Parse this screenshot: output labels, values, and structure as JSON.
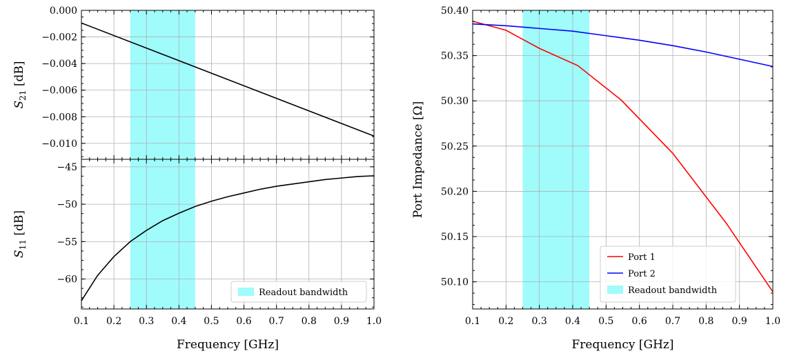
{
  "chart_data": [
    {
      "type": "line",
      "panel": "top-left",
      "ylabel_main": "S",
      "ylabel_sub": "21",
      "ylabel_unit": " [dB]",
      "xlim": [
        0.1,
        1.0
      ],
      "ylim": [
        -0.0112,
        0.0
      ],
      "y_ticks": [
        0.0,
        -0.002,
        -0.004,
        -0.006,
        -0.008,
        -0.01
      ],
      "y_tick_labels": [
        "0.000",
        "−0.002",
        "−0.004",
        "−0.006",
        "−0.008",
        "−0.010"
      ],
      "x_ticks": [
        0.1,
        0.2,
        0.3,
        0.4,
        0.5,
        0.6,
        0.7,
        0.8,
        0.9,
        1.0
      ],
      "shaded_band": [
        0.25,
        0.45
      ],
      "band_color": "#a0fbfb",
      "grid": true,
      "series": [
        {
          "color": "#000000",
          "x": [
            0.1,
            1.0
          ],
          "y": [
            -0.00095,
            -0.00945
          ]
        }
      ]
    },
    {
      "type": "line",
      "panel": "bottom-left",
      "ylabel_main": "S",
      "ylabel_sub": "11",
      "ylabel_unit": " [dB]",
      "xlabel": "Frequency [GHz]",
      "xlim": [
        0.1,
        1.0
      ],
      "ylim": [
        -64.0,
        -44.0
      ],
      "y_ticks": [
        -45,
        -50,
        -55,
        -60
      ],
      "y_tick_labels": [
        "−45",
        "−50",
        "−55",
        "−60"
      ],
      "x_ticks": [
        0.1,
        0.2,
        0.3,
        0.4,
        0.5,
        0.6,
        0.7,
        0.8,
        0.9,
        1.0
      ],
      "x_tick_labels": [
        "0.1",
        "0.2",
        "0.3",
        "0.4",
        "0.5",
        "0.6",
        "0.7",
        "0.8",
        "0.9",
        "1.0"
      ],
      "shaded_band": [
        0.25,
        0.45
      ],
      "band_color": "#a0fbfb",
      "grid": true,
      "legend": {
        "placement": "lower-right",
        "entries": [
          "Readout bandwidth"
        ]
      },
      "series": [
        {
          "color": "#000000",
          "x": [
            0.1,
            0.15,
            0.2,
            0.25,
            0.3,
            0.35,
            0.4,
            0.45,
            0.5,
            0.55,
            0.6,
            0.65,
            0.7,
            0.75,
            0.8,
            0.85,
            0.9,
            0.95,
            1.0
          ],
          "y": [
            -62.9,
            -59.5,
            -57.0,
            -55.0,
            -53.5,
            -52.2,
            -51.2,
            -50.3,
            -49.6,
            -49.0,
            -48.5,
            -48.0,
            -47.6,
            -47.3,
            -47.0,
            -46.7,
            -46.5,
            -46.3,
            -46.2
          ]
        }
      ]
    },
    {
      "type": "line",
      "panel": "right",
      "ylabel": "Port Impedance [Ω]",
      "xlabel": "Frequency [GHz]",
      "xlim": [
        0.1,
        1.0
      ],
      "ylim": [
        50.07,
        50.4
      ],
      "y_ticks": [
        50.1,
        50.15,
        50.2,
        50.25,
        50.3,
        50.35,
        50.4
      ],
      "y_tick_labels": [
        "50.10",
        "50.15",
        "50.20",
        "50.25",
        "50.30",
        "50.35",
        "50.40"
      ],
      "x_ticks": [
        0.1,
        0.2,
        0.3,
        0.4,
        0.5,
        0.6,
        0.7,
        0.8,
        0.9,
        1.0
      ],
      "x_tick_labels": [
        "0.1",
        "0.2",
        "0.3",
        "0.4",
        "0.5",
        "0.6",
        "0.7",
        "0.8",
        "0.9",
        "1.0"
      ],
      "shaded_band": [
        0.25,
        0.45
      ],
      "band_color": "#a0fbfb",
      "grid": true,
      "legend": {
        "placement": "lower-center",
        "entries": [
          "Port 1",
          "Port 2",
          "Readout bandwidth"
        ]
      },
      "series": [
        {
          "name": "Port 1",
          "color": "#ff0000",
          "x": [
            0.1,
            0.2,
            0.3,
            0.415,
            0.545,
            0.7,
            0.86,
            1.0
          ],
          "y": [
            50.388,
            50.378,
            50.358,
            50.339,
            50.301,
            50.242,
            50.165,
            50.089
          ]
        },
        {
          "name": "Port 2",
          "color": "#0000ff",
          "x": [
            0.1,
            0.2,
            0.3,
            0.4,
            0.5,
            0.6,
            0.7,
            0.8,
            0.9,
            1.0
          ],
          "y": [
            50.385,
            50.383,
            50.38,
            50.377,
            50.372,
            50.367,
            50.361,
            50.354,
            50.346,
            50.338
          ]
        }
      ]
    }
  ]
}
